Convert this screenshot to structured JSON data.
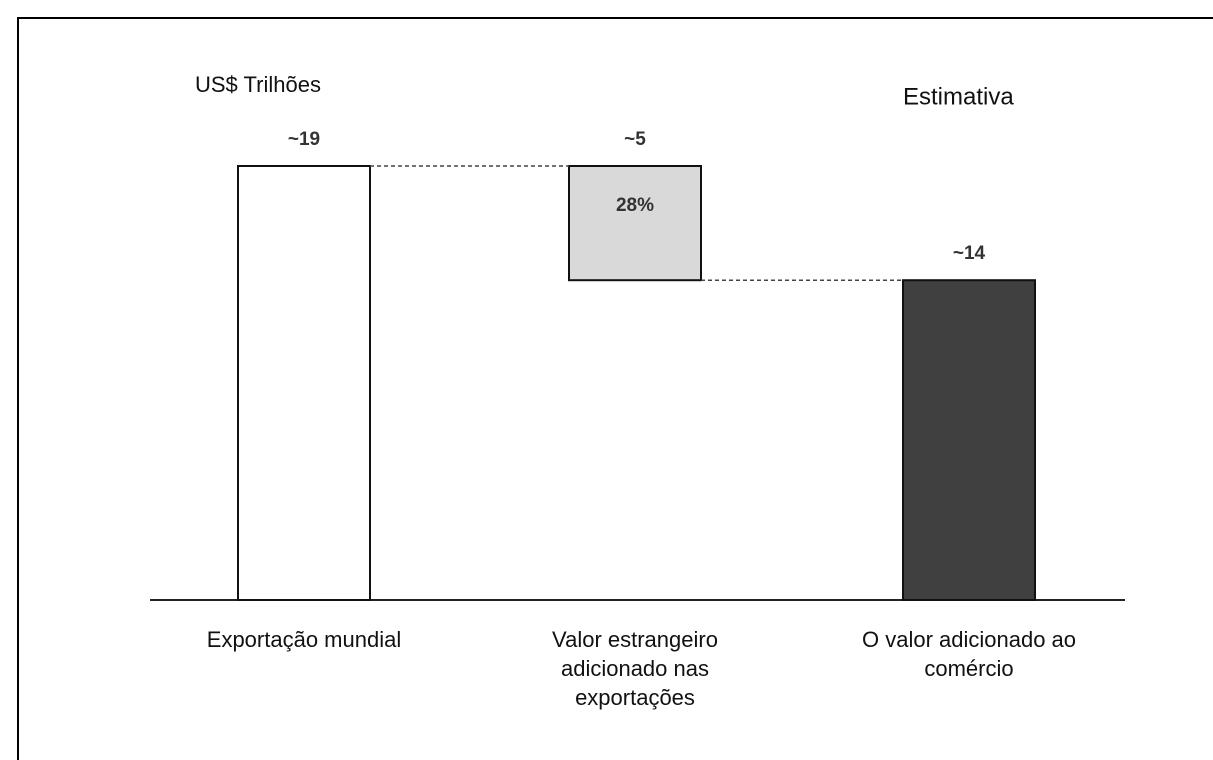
{
  "chart_data": {
    "type": "waterfall",
    "y_label": "US$ Trilhões",
    "subtitle": "Estimativa",
    "categories": [
      "Exportação mundial",
      "Valor estrangeiro adicionado nas exportações",
      "O valor adicionado ao comércio"
    ],
    "steps": [
      "total",
      "decrease",
      "total"
    ],
    "values": [
      19,
      5,
      14
    ],
    "value_labels": [
      "~19",
      "~5",
      "~14"
    ],
    "colors": [
      "#ffffff",
      "#d9d9d9",
      "#404040"
    ],
    "annotation": "28%"
  }
}
